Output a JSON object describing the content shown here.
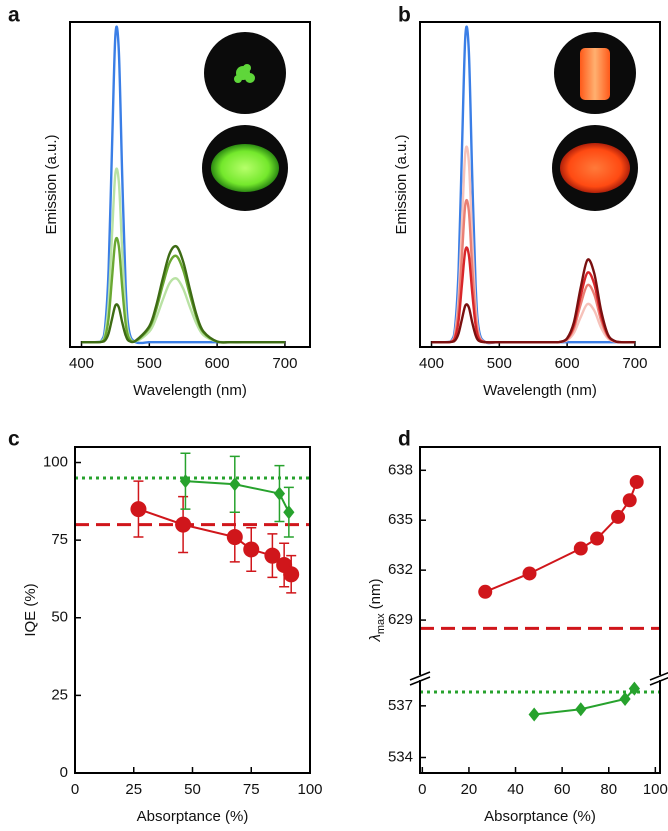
{
  "chart_data": [
    {
      "panel": "a",
      "type": "line",
      "x_label": "Wavelength (nm)",
      "y_label": "Emission (a.u.)",
      "x": [
        400,
        420,
        430,
        435,
        440,
        445,
        450,
        455,
        460,
        465,
        470,
        480,
        500,
        510,
        520,
        530,
        540,
        550,
        560,
        570,
        580,
        600,
        620,
        650,
        700
      ],
      "series": [
        {
          "color": "#3a7ee6",
          "values": [
            0,
            0,
            0.007,
            0.052,
            0.23,
            0.61,
            0.96,
            0.91,
            0.52,
            0.18,
            0.037,
            0,
            0,
            0,
            0,
            0,
            0,
            0,
            0,
            0,
            0,
            0,
            0,
            0,
            0
          ]
        },
        {
          "color": "#b9e2a4",
          "values": [
            0,
            0,
            0.004,
            0.029,
            0.127,
            0.336,
            0.528,
            0.501,
            0.286,
            0.099,
            0.02,
            0.003,
            0.033,
            0.075,
            0.133,
            0.185,
            0.199,
            0.167,
            0.109,
            0.056,
            0.022,
            0.002,
            0,
            0,
            0
          ]
        },
        {
          "color": "#6aa832",
          "values": [
            0,
            0,
            0.002,
            0.017,
            0.076,
            0.201,
            0.317,
            0.3,
            0.172,
            0.059,
            0.012,
            0.004,
            0.045,
            0.101,
            0.18,
            0.249,
            0.269,
            0.225,
            0.147,
            0.075,
            0.03,
            0.002,
            0,
            0,
            0
          ]
        },
        {
          "color": "#3d6b14",
          "values": [
            0,
            0,
            0.001,
            0.006,
            0.028,
            0.073,
            0.115,
            0.109,
            0.062,
            0.022,
            0.004,
            0.005,
            0.05,
            0.113,
            0.2,
            0.277,
            0.299,
            0.251,
            0.164,
            0.083,
            0.033,
            0.002,
            0,
            0,
            0
          ]
        }
      ],
      "xlim": [
        383,
        737
      ],
      "xticks": [
        400,
        500,
        600,
        700
      ],
      "ylim": [
        -0.015,
        1.0
      ]
    },
    {
      "panel": "b",
      "type": "line",
      "x_label": "Wavelength (nm)",
      "y_label": "Emission (a.u.)",
      "x": [
        400,
        420,
        430,
        435,
        440,
        445,
        450,
        455,
        460,
        465,
        470,
        480,
        500,
        560,
        580,
        590,
        600,
        610,
        620,
        630,
        640,
        650,
        660,
        670,
        680,
        700
      ],
      "series": [
        {
          "color": "#3a7ee6",
          "values": [
            0,
            0,
            0.007,
            0.052,
            0.23,
            0.61,
            0.96,
            0.91,
            0.52,
            0.18,
            0.037,
            0,
            0,
            0,
            0,
            0,
            0,
            0,
            0,
            0,
            0,
            0,
            0,
            0,
            0,
            0
          ]
        },
        {
          "color": "#f6c2ba",
          "values": [
            0,
            0,
            0.004,
            0.032,
            0.143,
            0.378,
            0.595,
            0.564,
            0.322,
            0.112,
            0.023,
            0,
            0,
            0,
            0,
            0.001,
            0.006,
            0.029,
            0.078,
            0.119,
            0.099,
            0.046,
            0.012,
            0.002,
            0,
            0
          ]
        },
        {
          "color": "#ea7f74",
          "values": [
            0,
            0,
            0.003,
            0.023,
            0.104,
            0.275,
            0.432,
            0.41,
            0.234,
            0.081,
            0.017,
            0,
            0,
            0,
            0,
            0.001,
            0.009,
            0.043,
            0.118,
            0.178,
            0.149,
            0.069,
            0.018,
            0.003,
            0,
            0
          ]
        },
        {
          "color": "#d8262a",
          "values": [
            0,
            0,
            0.002,
            0.016,
            0.069,
            0.183,
            0.288,
            0.273,
            0.156,
            0.054,
            0.011,
            0,
            0,
            0,
            0,
            0.001,
            0.011,
            0.053,
            0.144,
            0.217,
            0.182,
            0.084,
            0.022,
            0.003,
            0,
            0
          ]
        },
        {
          "color": "#7a1010",
          "values": [
            0,
            0,
            0.001,
            0.006,
            0.028,
            0.073,
            0.115,
            0.109,
            0.062,
            0.022,
            0.004,
            0,
            0,
            0,
            0,
            0.001,
            0.012,
            0.062,
            0.17,
            0.257,
            0.215,
            0.1,
            0.025,
            0.004,
            0,
            0
          ]
        }
      ],
      "xlim": [
        383,
        737
      ],
      "xticks": [
        400,
        500,
        600,
        700
      ],
      "ylim": [
        -0.015,
        1.0
      ]
    },
    {
      "panel": "c",
      "type": "scatter",
      "x_label": "Absorptance (%)",
      "y_label": "IQE (%)",
      "xlim": [
        0,
        100
      ],
      "xticks": [
        0,
        25,
        50,
        75,
        100
      ],
      "ylim": [
        0,
        105
      ],
      "yticks": [
        0,
        25,
        50,
        75,
        100
      ],
      "series": [
        {
          "color": "#d0161b",
          "marker": "circle",
          "x": [
            27,
            46,
            68,
            75,
            84,
            89,
            92
          ],
          "values": [
            85,
            80,
            76,
            72,
            70,
            67,
            64
          ],
          "errors": [
            9,
            9,
            8,
            7,
            7,
            7,
            6
          ],
          "ref_line": 80,
          "ref_style": "dashed"
        },
        {
          "color": "#27a22d",
          "marker": "diamond",
          "x": [
            47,
            68,
            87,
            91
          ],
          "values": [
            94,
            93,
            90,
            84
          ],
          "errors": [
            9,
            9,
            9,
            8
          ],
          "ref_line": 95,
          "ref_style": "dotted"
        }
      ]
    },
    {
      "panel": "d",
      "type": "scatter",
      "x_label": "Absorptance (%)",
      "y_label": {
        "symbol": "λ",
        "subscript": "max",
        "unit": "(nm)"
      },
      "xlim": [
        -1,
        102
      ],
      "xticks": [
        0,
        20,
        40,
        60,
        80,
        100
      ],
      "ylim": [
        533.1,
        538.5
      ],
      "yticks": [
        534,
        537
      ],
      "y2lim": [
        625.7,
        639.4
      ],
      "y2ticks": [
        629,
        632,
        635,
        638
      ],
      "broken_axis": true,
      "series": [
        {
          "color": "#d0161b",
          "marker": "circle",
          "axis": "y2",
          "x": [
            27,
            46,
            68,
            75,
            84,
            89,
            92
          ],
          "values": [
            630.7,
            631.8,
            633.3,
            633.9,
            635.2,
            636.2,
            637.3
          ],
          "ref_line": 628.5,
          "ref_style": "dashed"
        },
        {
          "color": "#27a22d",
          "marker": "diamond",
          "x": [
            48,
            68,
            87,
            91
          ],
          "values": [
            536.5,
            536.8,
            537.4,
            538.0
          ],
          "ref_line": 537.8,
          "ref_style": "dotted"
        }
      ]
    }
  ]
}
